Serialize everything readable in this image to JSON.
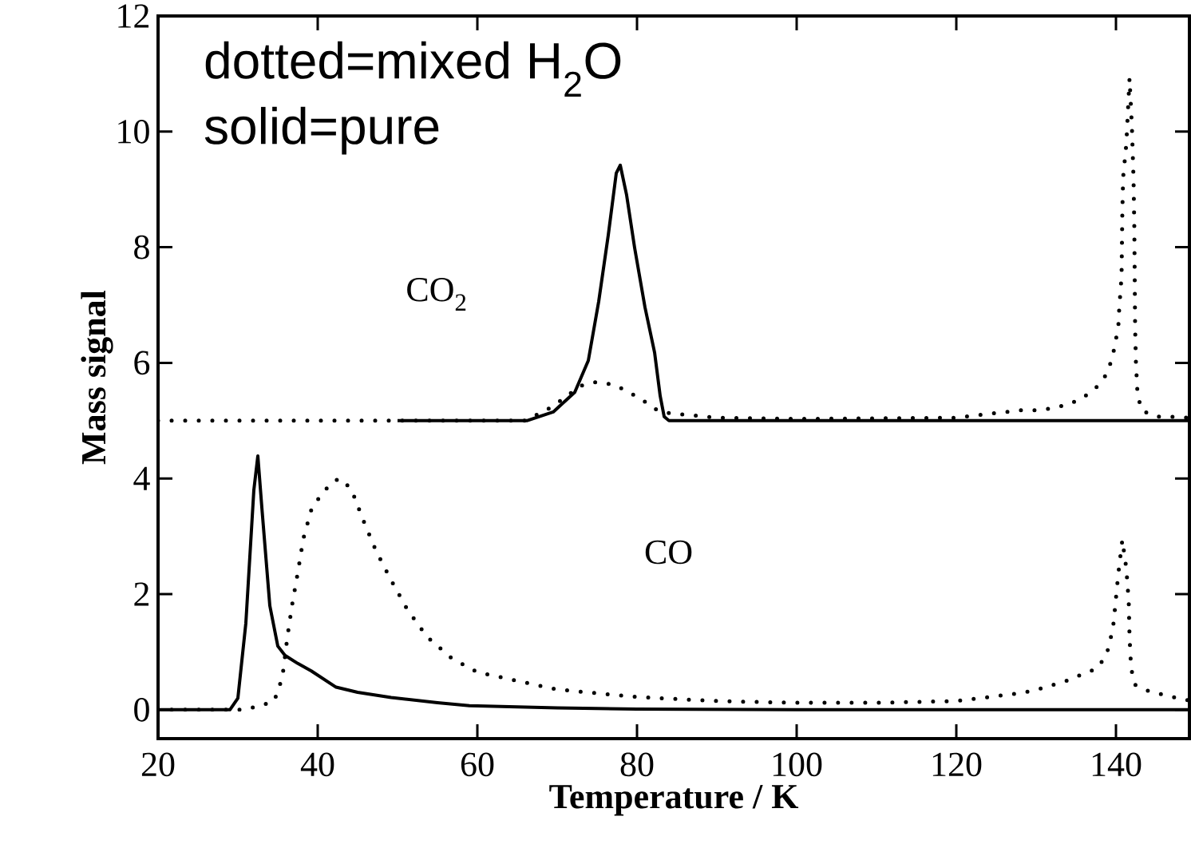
{
  "chart_data": {
    "type": "line",
    "xlabel": "Temperature / K",
    "ylabel": "Mass signal",
    "xlim": [
      20,
      149.2
    ],
    "ylim": [
      -0.5,
      12
    ],
    "xticks": [
      20,
      40,
      60,
      80,
      100,
      120,
      140
    ],
    "yticks": [
      0,
      2,
      4,
      6,
      8,
      10,
      12
    ],
    "grid": false,
    "marker": "none",
    "series": [
      {
        "color": "#000000",
        "line_style": "solid",
        "x": [
          20,
          29,
          30,
          31,
          32,
          32.5,
          33,
          34,
          35,
          35.9,
          37.5,
          39.2,
          42.3,
          45,
          49.2,
          55,
          59,
          65,
          70,
          80,
          100,
          149.2
        ],
        "values": [
          0,
          0,
          0.2,
          1.5,
          3.8,
          4.39,
          3.5,
          1.8,
          1.1,
          0.94,
          0.8,
          0.67,
          0.39,
          0.3,
          0.21,
          0.12,
          0.07,
          0.05,
          0.03,
          0.01,
          0,
          0
        ]
      },
      {
        "color": "#000000",
        "line_style": "dotted",
        "x": [
          20,
          29,
          30.9,
          34.5,
          35.2,
          35.7,
          36.2,
          36.8,
          37.5,
          38.2,
          39.3,
          41.7,
          42.8,
          44.2,
          45.7,
          47.3,
          49.2,
          51.2,
          53.7,
          56.7,
          58.5,
          60,
          70,
          80,
          90,
          100,
          110,
          120,
          128.2,
          130.2,
          132.1,
          134,
          135.9,
          137.6,
          138.8,
          139.3,
          139.7,
          139.9,
          140.3,
          140.8,
          141.3,
          141.6,
          141.7,
          141.9,
          142.4,
          144.3,
          146.3,
          148.3,
          149.2
        ],
        "values": [
          0,
          0,
          0,
          0.14,
          0.39,
          0.69,
          1.26,
          1.82,
          2.37,
          2.96,
          3.51,
          3.93,
          4.0,
          3.82,
          3.28,
          2.75,
          2.24,
          1.74,
          1.26,
          0.9,
          0.76,
          0.65,
          0.35,
          0.22,
          0.15,
          0.12,
          0.12,
          0.15,
          0.29,
          0.35,
          0.43,
          0.51,
          0.62,
          0.71,
          0.94,
          1.21,
          1.5,
          1.79,
          2.36,
          2.94,
          2.44,
          1.87,
          1.26,
          0.71,
          0.43,
          0.31,
          0.25,
          0.18,
          0.16
        ]
      },
      {
        "color": "#000000",
        "line_style": "solid",
        "x": [
          50,
          66.2,
          69.5,
          72.2,
          73.9,
          75.2,
          76.4,
          77.4,
          77.9,
          78.7,
          79.7,
          81,
          82.2,
          82.9,
          83.4,
          84,
          149.2
        ],
        "values": [
          5,
          5,
          5.15,
          5.49,
          6.04,
          7.06,
          8.21,
          9.28,
          9.42,
          8.9,
          7.99,
          6.96,
          6.18,
          5.43,
          5.07,
          5,
          5
        ]
      },
      {
        "color": "#000000",
        "line_style": "dotted",
        "x": [
          20,
          66,
          69.5,
          72.9,
          74.9,
          77.2,
          79,
          80.7,
          82,
          83.3,
          90,
          100,
          120,
          128,
          130,
          131.9,
          134,
          135.8,
          137.5,
          138.7,
          139.5,
          139.9,
          140.3,
          140.4,
          140.7,
          140.8,
          140.9,
          141.3,
          141.5,
          141.7,
          142,
          142.2,
          142.3,
          142.4,
          142.5,
          142.7,
          143.2,
          145,
          146.8,
          149.2
        ],
        "values": [
          5,
          5,
          5.25,
          5.6,
          5.67,
          5.62,
          5.49,
          5.36,
          5.22,
          5.14,
          5.05,
          5.03,
          5.05,
          5.18,
          5.18,
          5.21,
          5.28,
          5.39,
          5.57,
          5.78,
          6.06,
          6.33,
          6.64,
          6.92,
          7.5,
          8.63,
          9.21,
          9.79,
          10.36,
          10.92,
          10.07,
          9.18,
          8.33,
          6.6,
          6.01,
          5.46,
          5.18,
          5.07,
          5.07,
          5.05
        ]
      }
    ],
    "annotations": [
      "dotted=mixed H$_{2}$O",
      "solid=pure",
      "CO$_{2}$",
      "CO"
    ]
  }
}
